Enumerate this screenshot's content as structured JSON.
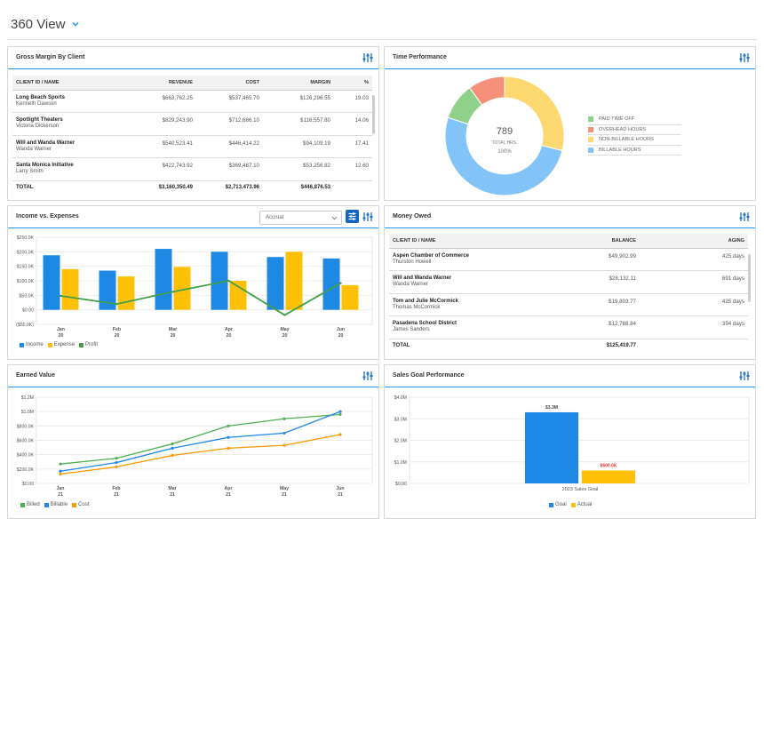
{
  "page": {
    "title": "360 View"
  },
  "gross_margin": {
    "title": "Gross Margin By Client",
    "columns": [
      "CLIENT ID / NAME",
      "REVENUE",
      "COST",
      "MARGIN",
      "%"
    ],
    "rows": [
      {
        "client": "Long Beach Sports",
        "contact": "Kenneth Dawson",
        "revenue": "$663,762.25",
        "cost": "$537,465.70",
        "margin": "$126,296.55",
        "pct": "19.03"
      },
      {
        "client": "Spotlight Theaters",
        "contact": "Victoria Dickerson",
        "revenue": "$829,243.90",
        "cost": "$712,686.10",
        "margin": "$116,557.80",
        "pct": "14.06"
      },
      {
        "client": "Will and Wanda Warner",
        "contact": "Wanda Warner",
        "revenue": "$540,523.41",
        "cost": "$446,414.22",
        "margin": "$94,109.19",
        "pct": "17.41"
      },
      {
        "client": "Santa Monica Initiative",
        "contact": "Larry Smith",
        "revenue": "$422,743.92",
        "cost": "$369,487.10",
        "margin": "$53,256.82",
        "pct": "12.60"
      }
    ],
    "total": {
      "label": "TOTAL",
      "revenue": "$3,160,350.49",
      "cost": "$2,713,473.96",
      "margin": "$446,876.53"
    }
  },
  "time_performance": {
    "title": "Time Performance",
    "center_value": "789",
    "center_label": "TOTAL HRS.",
    "center_pct": "100%",
    "legend": [
      {
        "label": "PAID TIME OFF",
        "color": "#8fd18a"
      },
      {
        "label": "OVERHEAD HOURS",
        "color": "#f5917b"
      },
      {
        "label": "NON-BILLABLE HOURS",
        "color": "#fdd870"
      },
      {
        "label": "BILLABLE HOURS",
        "color": "#82c3f8"
      }
    ],
    "slices": [
      {
        "label": "PAID TIME OFF",
        "value": 10,
        "color": "#8fd18a"
      },
      {
        "label": "OVERHEAD HOURS",
        "value": 10,
        "color": "#f5917b"
      },
      {
        "label": "NON-BILLABLE HOURS",
        "value": 29,
        "color": "#fdd870"
      },
      {
        "label": "BILLABLE HOURS",
        "value": 51,
        "color": "#82c3f8"
      }
    ]
  },
  "income_expenses": {
    "title": "Income vs. Expenses",
    "select_value": "Accrual",
    "legend": [
      "Income",
      "Expense",
      "Profit"
    ]
  },
  "money_owed": {
    "title": "Money Owed",
    "columns": [
      "CLIENT ID / NAME",
      "BALANCE",
      "AGING"
    ],
    "rows": [
      {
        "client": "Aspen Chamber of Commerce",
        "contact": "Thurston Howell",
        "balance": "$49,902.99",
        "aging": "425 days"
      },
      {
        "client": "Will and Wanda Warner",
        "contact": "Wanda Warner",
        "balance": "$28,132.11",
        "aging": "691 days"
      },
      {
        "client": "Tom and Julie McCormick",
        "contact": "Thomas McCormick",
        "balance": "$19,803.77",
        "aging": "425 days"
      },
      {
        "client": "Pasadena School District",
        "contact": "James Sanders",
        "balance": "$12,788.84",
        "aging": "394 days"
      }
    ],
    "total": {
      "label": "TOTAL",
      "balance": "$125,419.77"
    }
  },
  "earned_value": {
    "title": "Earned Value",
    "legend": [
      "Billed",
      "Billable",
      "Cost"
    ]
  },
  "sales_goal": {
    "title": "Sales Goal Performance",
    "legend": [
      "Goal",
      "Actual"
    ]
  },
  "chart_data": [
    {
      "type": "bar",
      "title": "Income vs. Expenses",
      "categories": [
        "Jan 20",
        "Feb 20",
        "Mar 20",
        "Apr 20",
        "May 20",
        "Jun 20"
      ],
      "tick_labels": [
        [
          "Jan",
          "20"
        ],
        [
          "Feb",
          "20"
        ],
        [
          "Mar",
          "20"
        ],
        [
          "Apr",
          "20"
        ],
        [
          "May",
          "20"
        ],
        [
          "Jun",
          "20"
        ]
      ],
      "series": [
        {
          "name": "Income",
          "type": "bar",
          "color": "#1e88e5",
          "values": [
            188,
            135,
            210,
            200,
            182,
            177
          ]
        },
        {
          "name": "Expense",
          "type": "bar",
          "color": "#ffc107",
          "values": [
            140,
            115,
            148,
            100,
            200,
            85
          ]
        },
        {
          "name": "Profit",
          "type": "line",
          "color": "#43a047",
          "values": [
            48,
            20,
            62,
            100,
            -18,
            92
          ]
        }
      ],
      "ylim": [
        -50,
        250
      ],
      "yticks": [
        -50,
        0,
        50,
        100,
        150,
        200,
        250
      ],
      "ytick_labels": [
        "($50.0K)",
        "$0.00",
        "$50.0K",
        "$100.0K",
        "$150.0K",
        "$200.0K",
        "$250.0K"
      ],
      "ylabel": "",
      "xlabel": ""
    },
    {
      "type": "line",
      "title": "Earned Value",
      "categories": [
        "Jan 21",
        "Feb 21",
        "Mar 21",
        "Apr 21",
        "May 21",
        "Jun 21"
      ],
      "tick_labels": [
        [
          "Jan",
          "21"
        ],
        [
          "Feb",
          "21"
        ],
        [
          "Mar",
          "21"
        ],
        [
          "Apr",
          "21"
        ],
        [
          "May",
          "21"
        ],
        [
          "Jun",
          "21"
        ]
      ],
      "series": [
        {
          "name": "Billed",
          "color": "#4caf50",
          "values": [
            0.27,
            0.35,
            0.55,
            0.8,
            0.9,
            0.96
          ]
        },
        {
          "name": "Billable",
          "color": "#1e88e5",
          "values": [
            0.17,
            0.29,
            0.49,
            0.64,
            0.7,
            1.0
          ]
        },
        {
          "name": "Cost",
          "color": "#ff9800",
          "values": [
            0.13,
            0.23,
            0.39,
            0.49,
            0.53,
            0.68
          ]
        }
      ],
      "ylim": [
        0,
        1.2
      ],
      "yticks": [
        0,
        0.2,
        0.4,
        0.6,
        0.8,
        1.0,
        1.2
      ],
      "ytick_labels": [
        "$0.00",
        "$200.0K",
        "$400.0K",
        "$600.0K",
        "$800.0K",
        "$1.0M",
        "$1.2M"
      ],
      "ylabel": "",
      "xlabel": ""
    },
    {
      "type": "bar",
      "title": "Sales Goal Performance",
      "categories": [
        "2023 Sales Goal"
      ],
      "series": [
        {
          "name": "Goal",
          "color": "#1e88e5",
          "values": [
            3.3
          ],
          "label": "$3.3M",
          "label_color": "#444"
        },
        {
          "name": "Actual",
          "color": "#ffc107",
          "values": [
            0.6
          ],
          "label": "$600.0K",
          "label_color": "#e53935"
        }
      ],
      "ylim": [
        0,
        4
      ],
      "yticks": [
        0,
        1,
        2,
        3,
        4
      ],
      "ytick_labels": [
        "$0.00",
        "$1.0M",
        "$2.0M",
        "$3.0M",
        "$4.0M"
      ],
      "ylabel": "",
      "xlabel": ""
    }
  ]
}
